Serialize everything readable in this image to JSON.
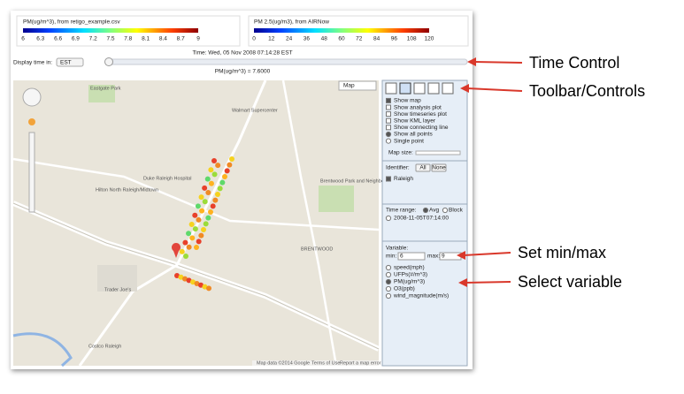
{
  "colorbars": [
    {
      "title": "PM(ug/m^3), from retigo_example.csv",
      "ticks": [
        6,
        6.3,
        6.6,
        6.9,
        7.2,
        7.5,
        7.8,
        8.1,
        8.4,
        8.7,
        9
      ]
    },
    {
      "title": "PM 2.5(ug/m3), from AIRNow",
      "ticks": [
        0,
        12,
        24,
        36,
        48,
        60,
        72,
        84,
        96,
        108,
        120
      ]
    }
  ],
  "time_control": {
    "time": "Time: Wed, 05 Nov 2008 07:14:28 EST",
    "display_label": "Display time in:",
    "timezone": "EST",
    "readout": "PM(ug/m^3) = 7.6000"
  },
  "map": {
    "type_button": "Map",
    "labels": [
      "Eastgate Park",
      "Walmart Supercenter",
      "Hilton North Raleigh/Midtown",
      "Duke Raleigh Hospital",
      "Trader Joe's",
      "Costco Raleigh",
      "Brentwood Park and Neighborhood Center",
      "BRENTWOOD"
    ],
    "footer": [
      "Map data ©2014 Google",
      "Terms of Use",
      "Report a map error"
    ]
  },
  "panel": {
    "options": [
      "Show map",
      "Show analysis plot",
      "Show timeseries plot",
      "Show KML layer",
      "Show connecting line",
      "Show all points",
      "Single point"
    ],
    "map_size": "Map size:",
    "identifier": {
      "label": "Identifier:",
      "buttons": [
        "All",
        "None"
      ],
      "items": [
        "Raleigh"
      ]
    },
    "time_range": {
      "label": "Time range:",
      "modes": [
        "Avg",
        "Block"
      ],
      "items": [
        "2008-11-05T07:14:00"
      ]
    },
    "variable": {
      "label": "Variable:",
      "min_label": "min:",
      "min": 6,
      "max_label": "max:",
      "max": 9,
      "options": [
        "speed(mph)",
        "UFPs(#/m^3)",
        "PM(ug/m^3)",
        "O3(ppb)",
        "wind_magnitude(m/s)"
      ]
    }
  },
  "annotations": [
    "Time Control",
    "Toolbar/Controls",
    "Set min/max",
    "Select variable"
  ]
}
